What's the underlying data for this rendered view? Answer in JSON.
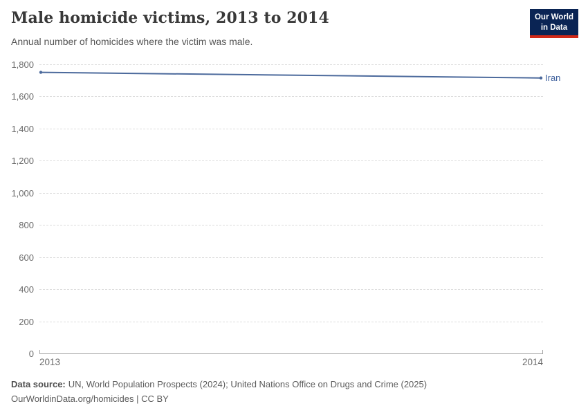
{
  "logo": {
    "line1": "Our World",
    "line2": "in Data",
    "bg_color": "#0A2454",
    "accent_color": "#D12917"
  },
  "chart_data": {
    "type": "line",
    "title": "Male homicide victims, 2013 to 2014",
    "subtitle": "Annual number of homicides where the victim was male.",
    "x": [
      2013,
      2014
    ],
    "series": [
      {
        "name": "Iran",
        "color": "#4C6A9C",
        "values": [
          1750,
          1715
        ]
      }
    ],
    "ylim": [
      0,
      1800
    ],
    "yticks": [
      0,
      200,
      400,
      600,
      800,
      1000,
      1200,
      1400,
      1600,
      1800
    ],
    "xticks": [
      2013,
      2014
    ],
    "grid": "horizontal-dashed",
    "legend_position": "label-at-line-end",
    "line_color": "#4C6A9C",
    "entity_label_color": "#3D5F9C"
  },
  "footer": {
    "datasource_label": "Data source:",
    "datasource_text": "UN, World Population Prospects (2024); United Nations Office on Drugs and Crime (2025)",
    "license_line": "OurWorldinData.org/homicides | CC BY"
  }
}
